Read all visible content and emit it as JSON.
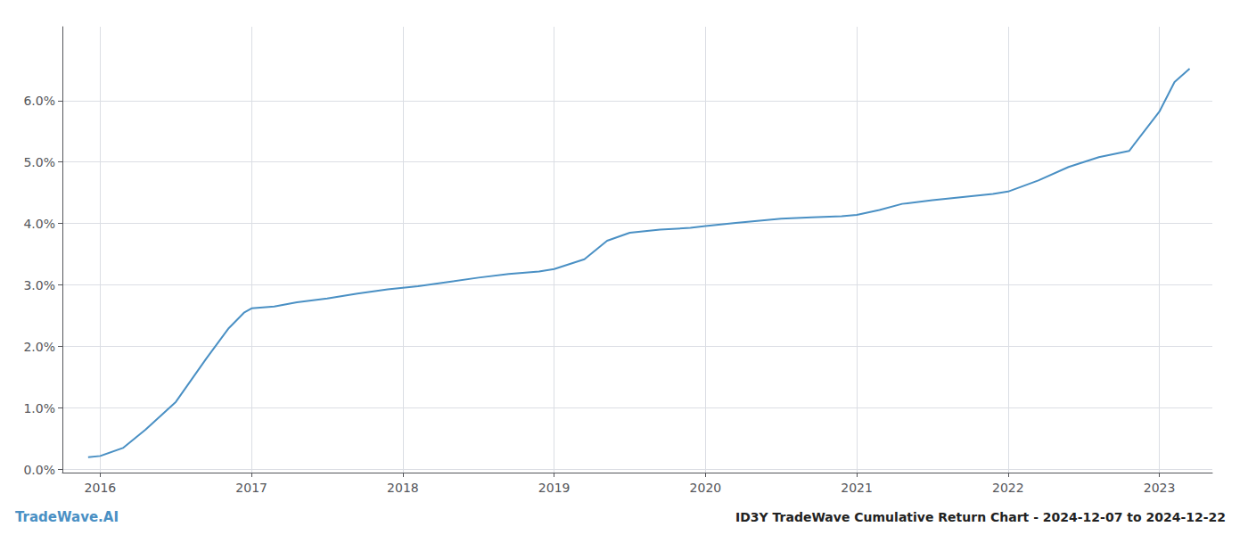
{
  "chart_data": {
    "type": "line",
    "title": "ID3Y TradeWave Cumulative Return Chart - 2024-12-07 to 2024-12-22",
    "annotations": [
      "TradeWave.AI"
    ],
    "color": "#4a90c4",
    "x": [
      2015.92,
      2016.0,
      2016.15,
      2016.3,
      2016.5,
      2016.7,
      2016.85,
      2016.95,
      2017.0,
      2017.15,
      2017.3,
      2017.5,
      2017.7,
      2017.9,
      2018.1,
      2018.3,
      2018.5,
      2018.7,
      2018.9,
      2019.0,
      2019.2,
      2019.35,
      2019.5,
      2019.7,
      2019.9,
      2020.0,
      2020.2,
      2020.5,
      2020.7,
      2020.9,
      2021.0,
      2021.15,
      2021.3,
      2021.5,
      2021.7,
      2021.9,
      2022.0,
      2022.2,
      2022.4,
      2022.6,
      2022.8,
      2023.0,
      2023.1,
      2023.2
    ],
    "values": [
      0.2,
      0.22,
      0.35,
      0.65,
      1.1,
      1.8,
      2.3,
      2.55,
      2.62,
      2.65,
      2.72,
      2.78,
      2.86,
      2.93,
      2.98,
      3.05,
      3.12,
      3.18,
      3.22,
      3.26,
      3.42,
      3.72,
      3.85,
      3.9,
      3.93,
      3.96,
      4.01,
      4.08,
      4.1,
      4.12,
      4.14,
      4.22,
      4.32,
      4.38,
      4.43,
      4.48,
      4.52,
      4.7,
      4.92,
      5.08,
      5.18,
      5.82,
      6.3,
      6.52
    ],
    "xlim": [
      2015.75,
      2023.35
    ],
    "xticks": [
      2016,
      2017,
      2018,
      2019,
      2020,
      2021,
      2022,
      2023
    ],
    "ylim": [
      -0.05,
      7.2
    ],
    "yticks": [
      {
        "value": 0.0,
        "label": "0.0%"
      },
      {
        "value": 1.0,
        "label": "1.0%"
      },
      {
        "value": 2.0,
        "label": "2.0%"
      },
      {
        "value": 3.0,
        "label": "3.0%"
      },
      {
        "value": 4.0,
        "label": "4.0%"
      },
      {
        "value": 5.0,
        "label": "5.0%"
      },
      {
        "value": 6.0,
        "label": "6.0%"
      }
    ],
    "grid": true
  }
}
